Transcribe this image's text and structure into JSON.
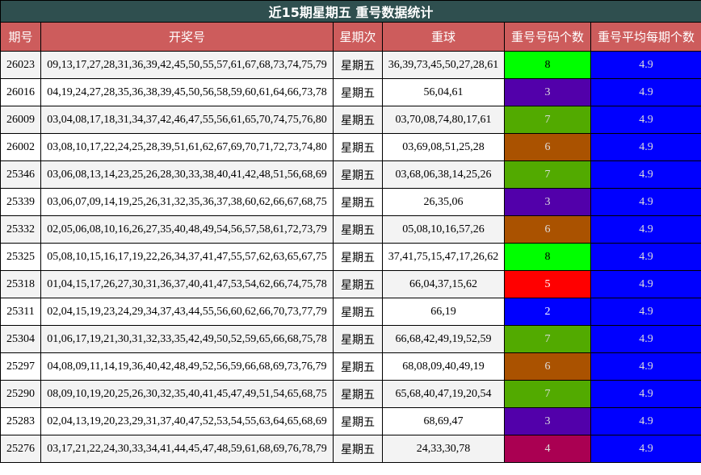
{
  "title": "近15期星期五 重号数据统计",
  "columns": [
    "期号",
    "开奖号",
    "星期次",
    "重球",
    "重号号码个数",
    "重号平均每期个数"
  ],
  "count_colors": {
    "2": "#0000ff",
    "3": "#5200aa",
    "4": "#aa0052",
    "5": "#ff0000",
    "6": "#aa5200",
    "7": "#52aa00",
    "8": "#00ff00"
  },
  "avg_color": "#0000ff",
  "rows": [
    {
      "issue": "26023",
      "numbers": "09,13,17,27,28,31,36,39,42,45,50,55,57,61,67,68,73,74,75,79",
      "weekday": "星期五",
      "repeat": "36,39,73,45,50,27,28,61",
      "count": "8",
      "avg": "4.9"
    },
    {
      "issue": "26016",
      "numbers": "04,19,24,27,28,35,36,38,39,45,50,56,58,59,60,61,64,66,73,78",
      "weekday": "星期五",
      "repeat": "56,04,61",
      "count": "3",
      "avg": "4.9"
    },
    {
      "issue": "26009",
      "numbers": "03,04,08,17,18,31,34,37,42,46,47,55,56,61,65,70,74,75,76,80",
      "weekday": "星期五",
      "repeat": "03,70,08,74,80,17,61",
      "count": "7",
      "avg": "4.9"
    },
    {
      "issue": "26002",
      "numbers": "03,08,10,17,22,24,25,28,39,51,61,62,67,69,70,71,72,73,74,80",
      "weekday": "星期五",
      "repeat": "03,69,08,51,25,28",
      "count": "6",
      "avg": "4.9"
    },
    {
      "issue": "25346",
      "numbers": "03,06,08,13,14,23,25,26,28,30,33,38,40,41,42,48,51,56,68,69",
      "weekday": "星期五",
      "repeat": "03,68,06,38,14,25,26",
      "count": "7",
      "avg": "4.9"
    },
    {
      "issue": "25339",
      "numbers": "03,06,07,09,14,19,25,26,31,32,35,36,37,38,60,62,66,67,68,75",
      "weekday": "星期五",
      "repeat": "26,35,06",
      "count": "3",
      "avg": "4.9"
    },
    {
      "issue": "25332",
      "numbers": "02,05,06,08,10,16,26,27,35,40,48,49,54,56,57,58,61,72,73,79",
      "weekday": "星期五",
      "repeat": "05,08,10,16,57,26",
      "count": "6",
      "avg": "4.9"
    },
    {
      "issue": "25325",
      "numbers": "05,08,10,15,16,17,19,22,26,34,37,41,47,55,57,62,63,65,67,75",
      "weekday": "星期五",
      "repeat": "37,41,75,15,47,17,26,62",
      "count": "8",
      "avg": "4.9"
    },
    {
      "issue": "25318",
      "numbers": "01,04,15,17,26,27,30,31,36,37,40,41,47,53,54,62,66,74,75,78",
      "weekday": "星期五",
      "repeat": "66,04,37,15,62",
      "count": "5",
      "avg": "4.9"
    },
    {
      "issue": "25311",
      "numbers": "02,04,15,19,23,24,29,34,37,43,44,55,56,60,62,66,70,73,77,79",
      "weekday": "星期五",
      "repeat": "66,19",
      "count": "2",
      "avg": "4.9"
    },
    {
      "issue": "25304",
      "numbers": "01,06,17,19,21,30,31,32,33,35,42,49,50,52,59,65,66,68,75,78",
      "weekday": "星期五",
      "repeat": "66,68,42,49,19,52,59",
      "count": "7",
      "avg": "4.9"
    },
    {
      "issue": "25297",
      "numbers": "04,08,09,11,14,19,36,40,42,48,49,52,56,59,66,68,69,73,76,79",
      "weekday": "星期五",
      "repeat": "68,08,09,40,49,19",
      "count": "6",
      "avg": "4.9"
    },
    {
      "issue": "25290",
      "numbers": "08,09,10,19,20,25,26,30,32,35,40,41,45,47,49,51,54,65,68,75",
      "weekday": "星期五",
      "repeat": "65,68,40,47,19,20,54",
      "count": "7",
      "avg": "4.9"
    },
    {
      "issue": "25283",
      "numbers": "02,04,13,19,20,23,29,31,37,40,47,52,53,54,55,63,64,65,68,69",
      "weekday": "星期五",
      "repeat": "68,69,47",
      "count": "3",
      "avg": "4.9"
    },
    {
      "issue": "25276",
      "numbers": "03,17,21,22,24,30,33,34,41,44,45,47,48,59,61,68,69,76,78,79",
      "weekday": "星期五",
      "repeat": "24,33,30,78",
      "count": "4",
      "avg": "4.9"
    }
  ]
}
